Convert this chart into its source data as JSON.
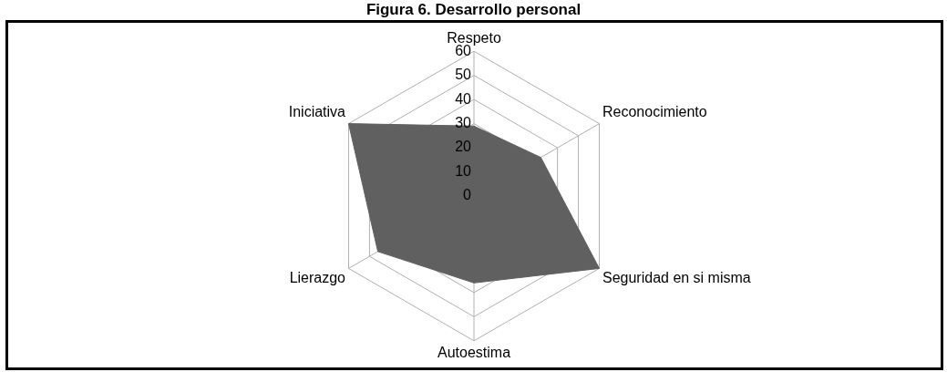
{
  "chart_data": {
    "type": "radar",
    "title": "Figura 6. Desarrollo personal",
    "categories": [
      "Respeto",
      "Reconocimiento",
      "Seguridad en si misma",
      "Autoestima",
      "Lierazgo",
      "Iniciativa"
    ],
    "series": [
      {
        "color": "#606060",
        "values": [
          29,
          32,
          60,
          36,
          46,
          60
        ]
      }
    ],
    "ylim": [
      0,
      60
    ],
    "yticks": [
      0,
      10,
      20,
      30,
      40,
      50,
      60
    ],
    "grid": true,
    "legend": false
  }
}
